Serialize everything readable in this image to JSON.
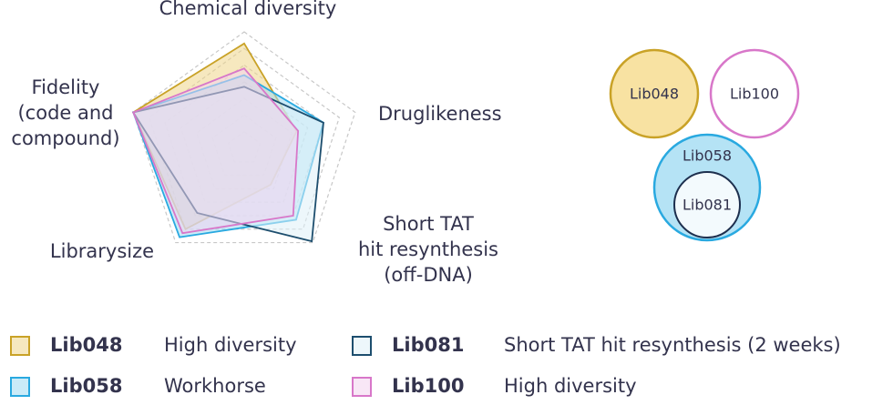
{
  "chart_data": {
    "type": "radar",
    "axes": [
      [
        "Chemical diversity"
      ],
      [
        "Druglikeness"
      ],
      [
        "Short TAT",
        "hit resynthesis",
        "(off-DNA)"
      ],
      [
        "Librarysize"
      ],
      [
        "Fidelity",
        "(code and",
        "compound)"
      ]
    ],
    "rlim": [
      0,
      7
    ],
    "rticks": [
      1,
      2,
      3,
      4,
      5,
      6,
      7
    ],
    "grid": true,
    "series": [
      {
        "name": "Lib048",
        "description": "High diversity",
        "color": "#c9a227",
        "fill": "#efd58a",
        "values": [
          6.3,
          3.3,
          2.7,
          6.0,
          7
        ]
      },
      {
        "name": "Lib058",
        "description": "Workhorse",
        "color": "#29a9e0",
        "fill": "#9fdaf3",
        "values": [
          4.4,
          5.0,
          5.3,
          6.6,
          7
        ]
      },
      {
        "name": "Lib081",
        "description": "Short TAT hit resynthesis (2 weeks)",
        "color": "#1d4e6e",
        "fill": "#dff1f8",
        "values": [
          3.7,
          5.0,
          6.9,
          4.8,
          7
        ]
      },
      {
        "name": "Lib100",
        "description": "High diversity",
        "color": "#d877c9",
        "fill": "#f3d4ee",
        "values": [
          4.8,
          3.4,
          5.0,
          6.3,
          7
        ]
      }
    ]
  },
  "venn": {
    "circles": [
      "Lib048",
      "Lib100",
      "Lib058",
      "Lib081"
    ]
  }
}
